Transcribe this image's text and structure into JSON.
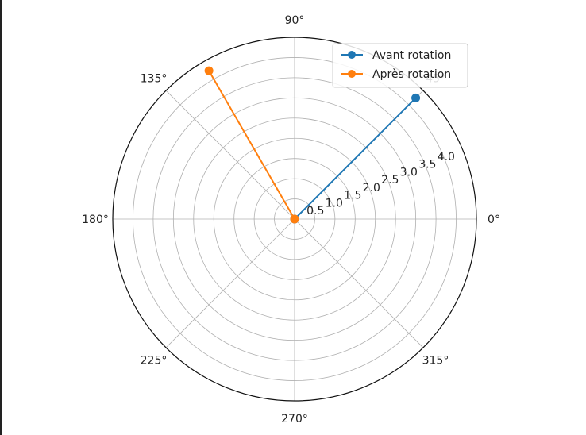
{
  "chart_data": {
    "type": "line",
    "projection": "polar",
    "angle_ticks_deg": [
      0,
      45,
      90,
      135,
      180,
      225,
      270,
      315
    ],
    "angle_tick_labels": [
      "0°",
      "45°",
      "90°",
      "135°",
      "180°",
      "225°",
      "270°",
      "315°"
    ],
    "radial_ticks": [
      0.5,
      1.0,
      1.5,
      2.0,
      2.5,
      3.0,
      3.5,
      4.0
    ],
    "radial_tick_labels": [
      "0.5",
      "1.0",
      "1.5",
      "2.0",
      "2.5",
      "3.0",
      "3.5",
      "4.0"
    ],
    "rlim": [
      0,
      4.5
    ],
    "grid": true,
    "legend": "top-right",
    "series": [
      {
        "name": "Avant rotation",
        "color": "#1f77b4",
        "points": [
          {
            "theta_deg": 0,
            "r": 0
          },
          {
            "theta_deg": 45,
            "r": 4.24
          }
        ]
      },
      {
        "name": "Après rotation",
        "color": "#ff7f0e",
        "points": [
          {
            "theta_deg": 0,
            "r": 0
          },
          {
            "theta_deg": 120,
            "r": 4.24
          }
        ]
      }
    ]
  }
}
